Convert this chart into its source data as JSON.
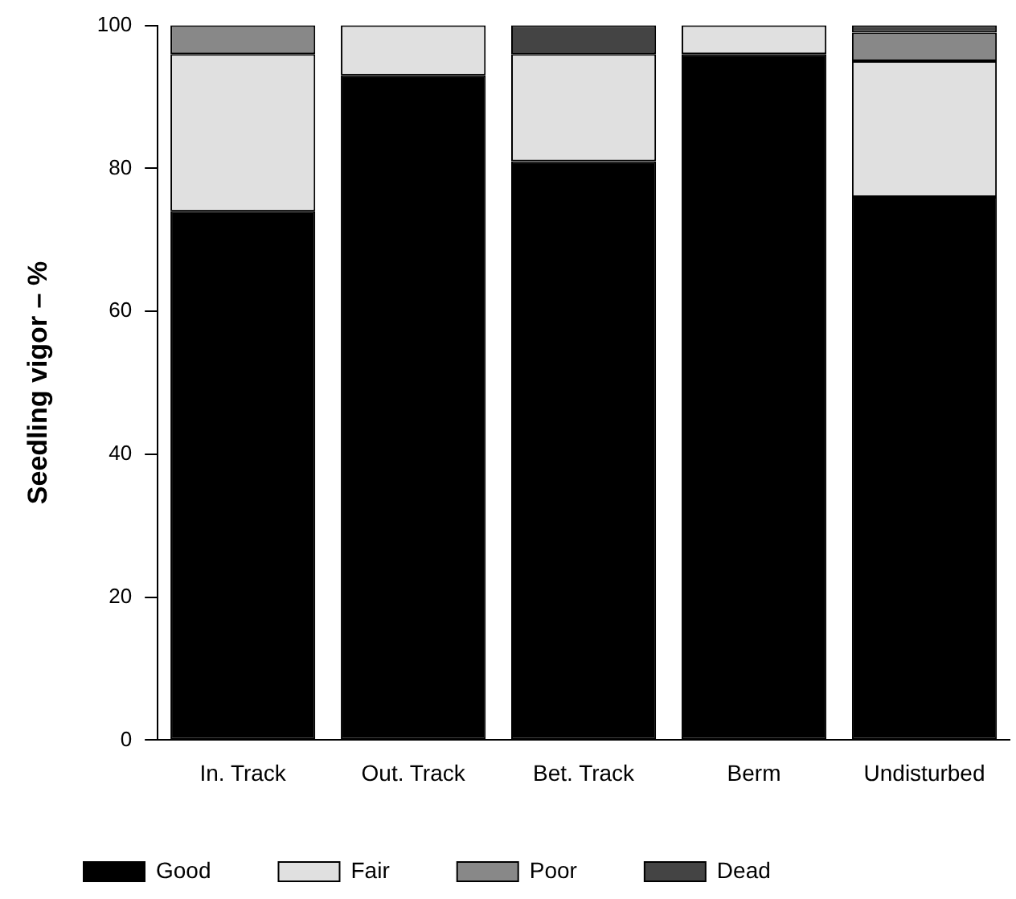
{
  "chart_data": {
    "type": "bar",
    "stacked": true,
    "ylabel": "Seedling vigor – %",
    "categories": [
      "In. Track",
      "Out. Track",
      "Bet. Track",
      "Berm",
      "Undisturbed"
    ],
    "series": [
      {
        "name": "Good",
        "color": "#000000",
        "values": [
          74,
          93,
          81,
          96,
          76
        ]
      },
      {
        "name": "Fair",
        "color": "#e0e0e0",
        "values": [
          22,
          7,
          15,
          4,
          19
        ]
      },
      {
        "name": "Poor",
        "color": "#888888",
        "values": [
          4,
          0,
          0,
          0,
          4
        ]
      },
      {
        "name": "Dead",
        "color": "#444444",
        "values": [
          0,
          0,
          4,
          0,
          1
        ]
      }
    ],
    "ylim": [
      0,
      100
    ],
    "yticks": [
      0,
      20,
      40,
      60,
      80,
      100
    ],
    "grid": false,
    "legend": "bottom"
  }
}
